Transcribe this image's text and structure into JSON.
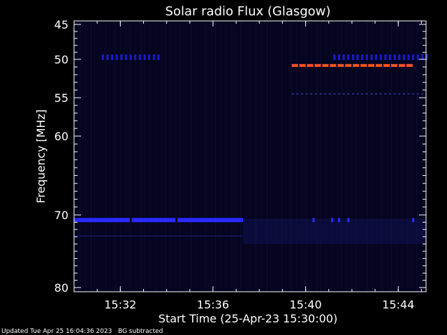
{
  "chart_data": {
    "type": "heatmap",
    "title": "Solar radio Flux (Glasgow)",
    "xlabel": "Start Time (25-Apr-23 15:30:00)",
    "ylabel": "Frequency [MHz]",
    "xlim_minutes_after_1530": [
      0,
      15.2
    ],
    "ylim_mhz": [
      80,
      45
    ],
    "x_ticks": [
      {
        "label": "15:32",
        "minute": 2
      },
      {
        "label": "15:36",
        "minute": 6
      },
      {
        "label": "15:40",
        "minute": 10
      },
      {
        "label": "15:44",
        "minute": 14
      }
    ],
    "y_ticks": [
      {
        "label": "45",
        "mhz": 45
      },
      {
        "label": "50",
        "mhz": 50
      },
      {
        "label": "55",
        "mhz": 55
      },
      {
        "label": "60",
        "mhz": 60
      },
      {
        "label": "70",
        "mhz": 70
      },
      {
        "label": "80",
        "mhz": 80
      }
    ],
    "colors": {
      "background": "#000000",
      "plot_background": "#05051f",
      "weak_signal": "#1a1acc",
      "medium_signal": "#2a2aff",
      "strong_signal": "#ff5522",
      "axis": "#ffffff"
    },
    "features": [
      {
        "name": "band-70.7MHz",
        "freq_mhz": 70.7,
        "start_min": 0.0,
        "end_min": 7.3,
        "intensity": "medium",
        "pattern": "continuous"
      },
      {
        "name": "band-50MHz-early",
        "freq_mhz": 49.7,
        "start_min": 1.2,
        "end_min": 3.6,
        "intensity": "weak",
        "pattern": "dashed"
      },
      {
        "name": "band-50MHz-late",
        "freq_mhz": 49.7,
        "start_min": 11.2,
        "end_min": 15.2,
        "intensity": "weak",
        "pattern": "dashed"
      },
      {
        "name": "band-51MHz-strong",
        "freq_mhz": 50.8,
        "start_min": 9.4,
        "end_min": 14.6,
        "intensity": "strong",
        "pattern": "dashed"
      },
      {
        "name": "band-54.5MHz-faint",
        "freq_mhz": 54.5,
        "start_min": 9.4,
        "end_min": 15.0,
        "intensity": "faint",
        "pattern": "dashed"
      }
    ]
  },
  "footer": {
    "updated": "Updated Tue Apr 25 16:04:36 2023",
    "note": "BG subtracted"
  }
}
